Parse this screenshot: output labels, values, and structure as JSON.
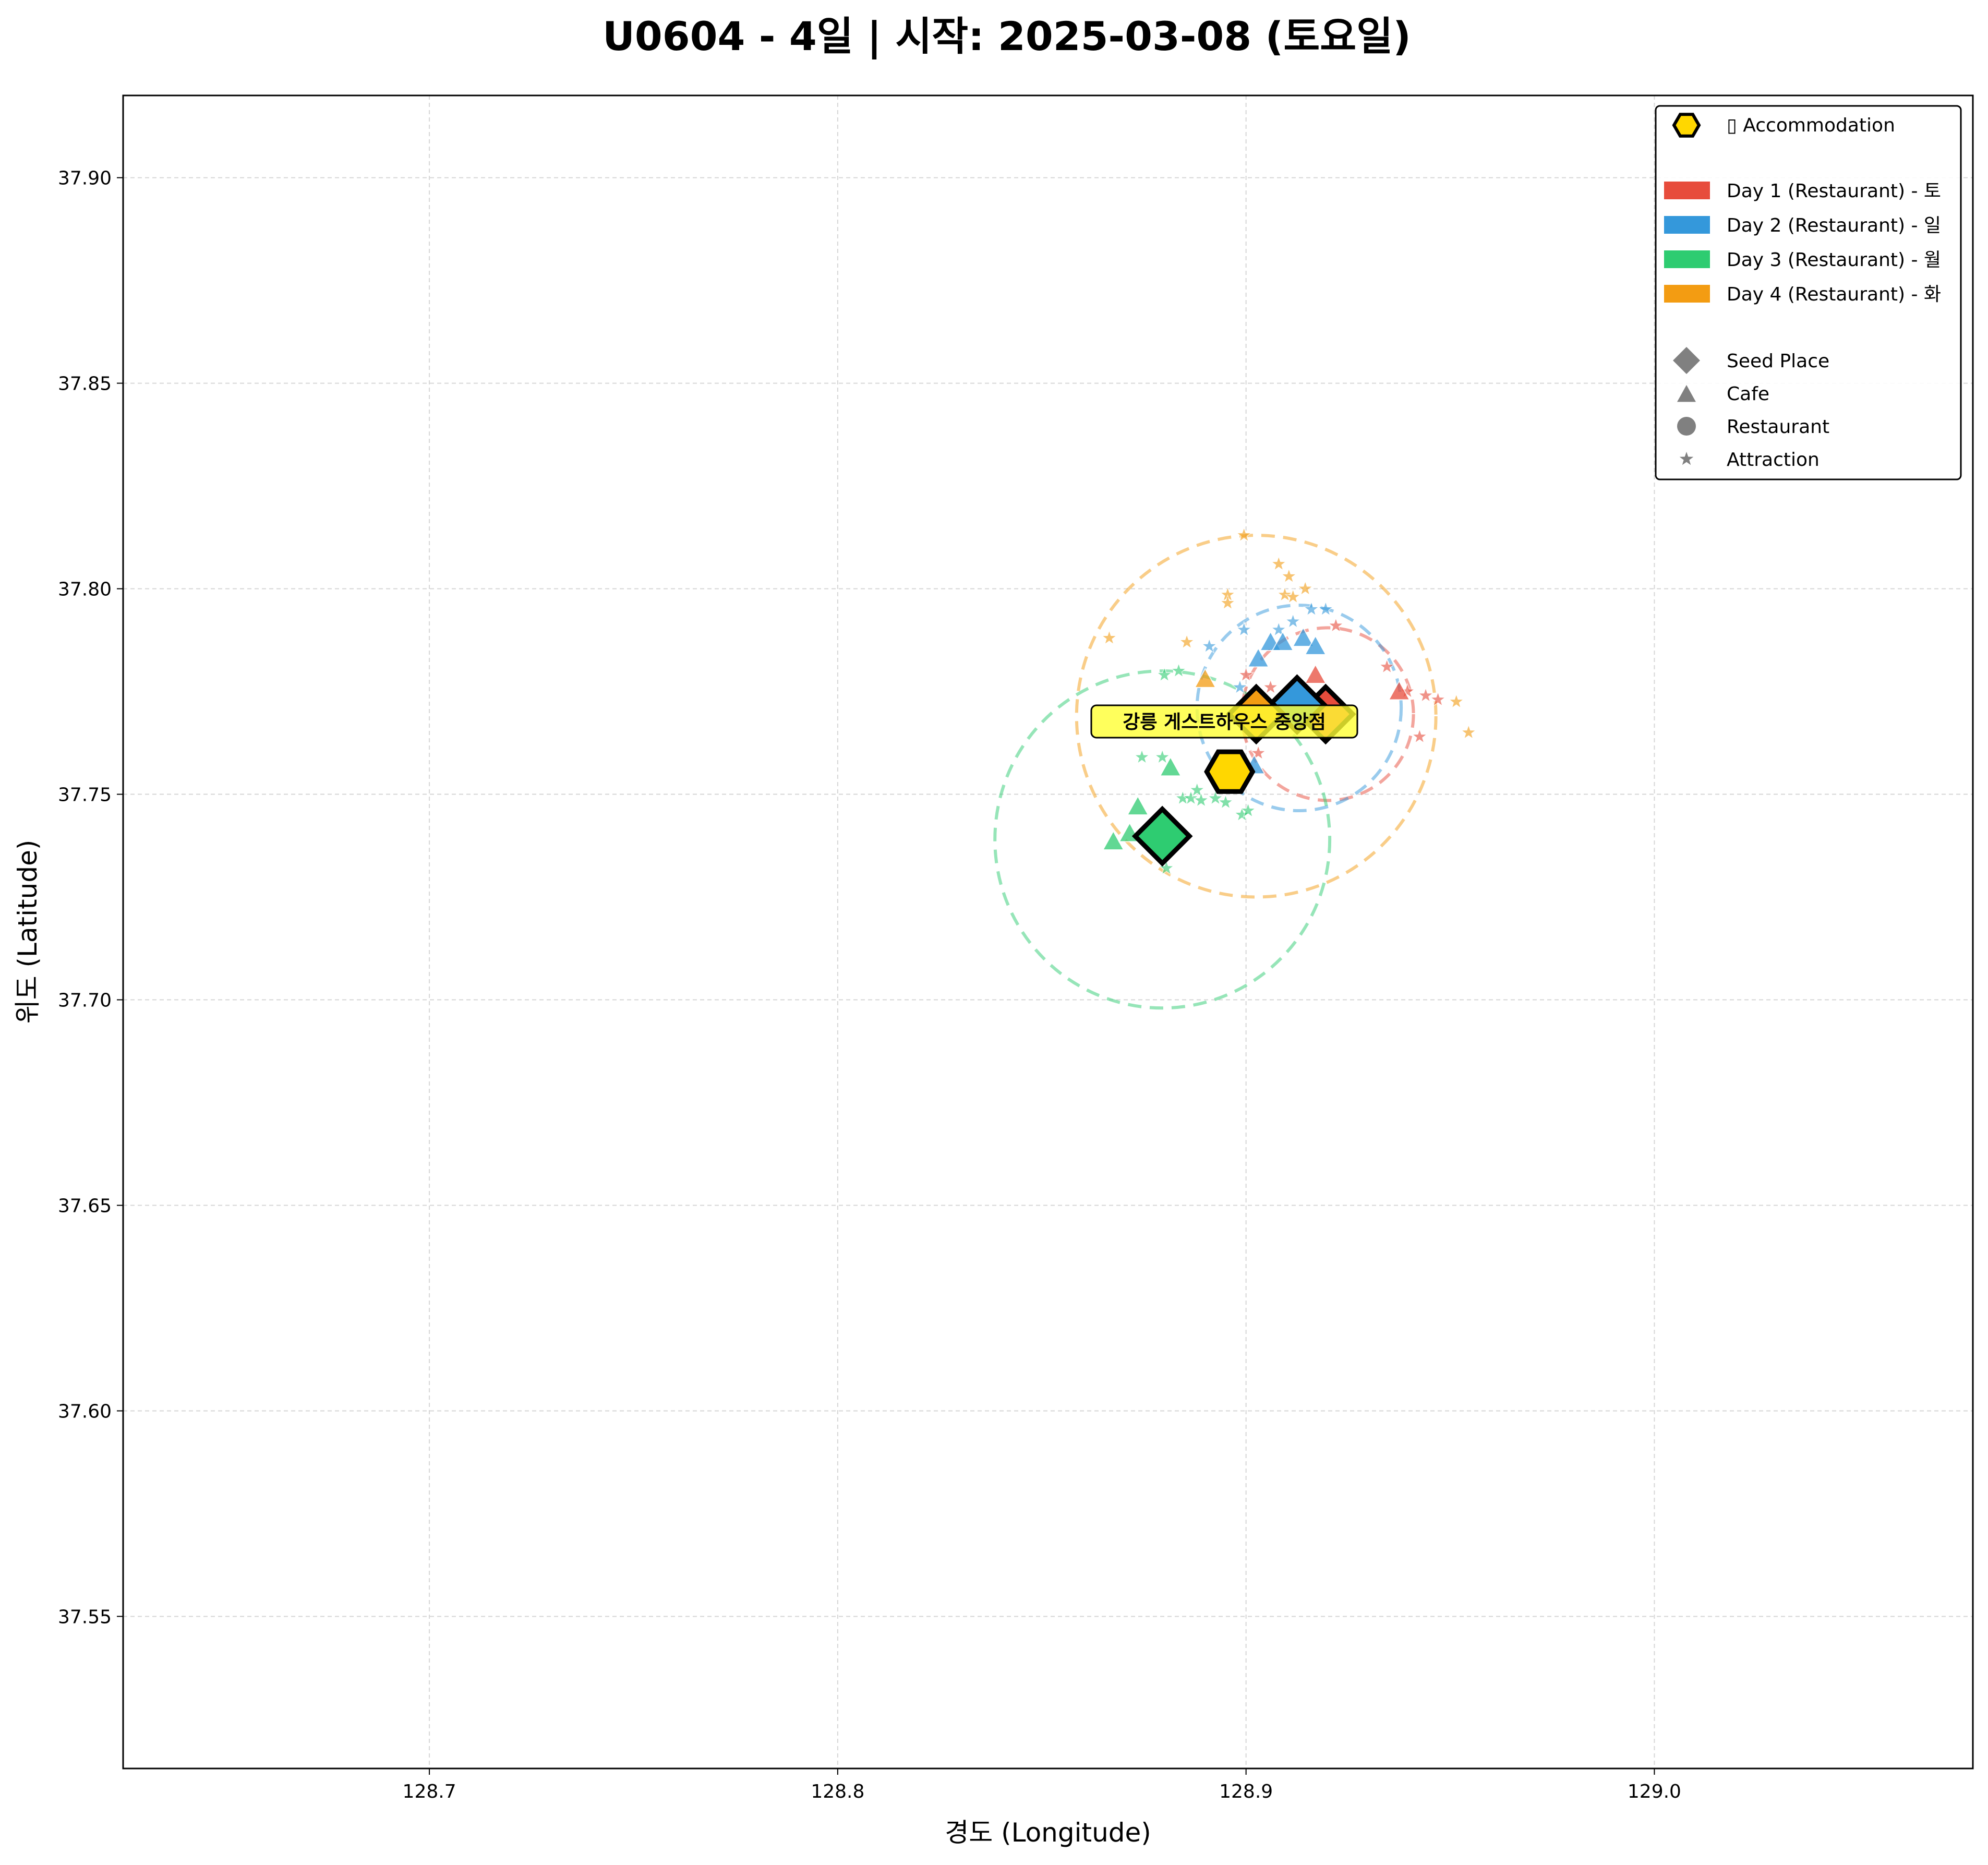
{
  "chart_data": {
    "type": "scatter",
    "title": "U0604 - 4일 | 시작: 2025-03-08 (토요일)",
    "xlabel": "경도 (Longitude)",
    "ylabel": "위도 (Latitude)",
    "xlim": [
      128.625,
      129.078
    ],
    "ylim": [
      37.513,
      37.92
    ],
    "xticks": [
      128.7,
      128.8,
      128.9,
      129.0
    ],
    "xtick_labels": [
      "128.7",
      "128.8",
      "128.9",
      "129.0"
    ],
    "yticks": [
      37.55,
      37.6,
      37.65,
      37.7,
      37.75,
      37.8,
      37.85,
      37.9
    ],
    "ytick_labels": [
      "37.55",
      "37.60",
      "37.65",
      "37.70",
      "37.75",
      "37.80",
      "37.85",
      "37.90"
    ],
    "grid": true,
    "legend_position": "top-right",
    "legend": {
      "accommodation": "▯ Accommodation",
      "days": [
        "Day 1 (Restaurant) - 토",
        "Day 2 (Restaurant) - 일",
        "Day 3 (Restaurant) - 월",
        "Day 4 (Restaurant) - 화"
      ],
      "types": [
        "Seed Place",
        "Cafe",
        "Restaurant",
        "Attraction"
      ]
    },
    "colors": {
      "day1": "#e74c3c",
      "day2": "#3498db",
      "day3": "#2ecc71",
      "day4": "#f39c12",
      "accommodation": "#ffd700",
      "type_marker": "#808080"
    },
    "accommodation": {
      "name": "강릉 게스트하우스 중앙점",
      "lon": 128.896,
      "lat": 37.7555
    },
    "series": [
      {
        "name": "Day 1 (Restaurant) - 토",
        "color": "#e74c3c",
        "radius_circle": {
          "center": [
            128.92,
            37.7695
          ],
          "radius": 0.021
        },
        "seed": [
          128.9195,
          37.7695
        ],
        "cafes": [
          [
            128.917,
            37.779
          ],
          [
            128.9375,
            37.775
          ],
          [
            128.9005,
            37.769
          ]
        ],
        "attractions": [
          [
            128.922,
            37.791
          ],
          [
            128.9345,
            37.781
          ],
          [
            128.9395,
            37.775
          ],
          [
            128.944,
            37.774
          ],
          [
            128.947,
            37.773
          ],
          [
            128.9425,
            37.764
          ],
          [
            128.9,
            37.779
          ],
          [
            128.903,
            37.76
          ],
          [
            128.906,
            37.776
          ]
        ]
      },
      {
        "name": "Day 2 (Restaurant) - 일",
        "color": "#3498db",
        "radius_circle": {
          "center": [
            128.913,
            37.771
          ],
          "radius": 0.025
        },
        "seed": [
          128.9125,
          37.7718
        ],
        "cafes": [
          [
            128.903,
            37.783
          ],
          [
            128.906,
            37.787
          ],
          [
            128.909,
            37.787
          ],
          [
            128.914,
            37.788
          ],
          [
            128.917,
            37.786
          ],
          [
            128.902,
            37.757
          ]
        ],
        "attractions": [
          [
            128.891,
            37.786
          ],
          [
            128.8995,
            37.79
          ],
          [
            128.908,
            37.79
          ],
          [
            128.9115,
            37.792
          ],
          [
            128.916,
            37.795
          ],
          [
            128.9195,
            37.795
          ],
          [
            128.8985,
            37.776
          ]
        ]
      },
      {
        "name": "Day 3 (Restaurant) - 월",
        "color": "#2ecc71",
        "radius_circle": {
          "center": [
            128.8795,
            37.739
          ],
          "radius": 0.041
        },
        "seed": [
          128.8795,
          37.7398
        ],
        "cafes": [
          [
            128.8735,
            37.747
          ],
          [
            128.8815,
            37.7565
          ],
          [
            128.8675,
            37.7385
          ],
          [
            128.8715,
            37.7405
          ]
        ],
        "attractions": [
          [
            128.88,
            37.779
          ],
          [
            128.8835,
            37.78
          ],
          [
            128.8745,
            37.759
          ],
          [
            128.8795,
            37.759
          ],
          [
            128.8845,
            37.749
          ],
          [
            128.8865,
            37.749
          ],
          [
            128.888,
            37.751
          ],
          [
            128.8925,
            37.749
          ],
          [
            128.895,
            37.748
          ],
          [
            128.899,
            37.745
          ],
          [
            128.889,
            37.7485
          ],
          [
            128.9005,
            37.746
          ],
          [
            128.8805,
            37.732
          ]
        ]
      },
      {
        "name": "Day 4 (Restaurant) - 화",
        "color": "#f39c12",
        "radius_circle": {
          "center": [
            128.9025,
            37.769
          ],
          "radius": 0.044
        },
        "seed": [
          128.9025,
          37.7695
        ],
        "cafes": [
          [
            128.89,
            37.778
          ]
        ],
        "attractions": [
          [
            128.8995,
            37.813
          ],
          [
            128.908,
            37.806
          ],
          [
            128.9105,
            37.803
          ],
          [
            128.9145,
            37.8
          ],
          [
            128.9095,
            37.7985
          ],
          [
            128.9115,
            37.798
          ],
          [
            128.8955,
            37.7985
          ],
          [
            128.8955,
            37.7965
          ],
          [
            128.8855,
            37.787
          ],
          [
            128.8665,
            37.788
          ],
          [
            128.9515,
            37.7725
          ],
          [
            128.9545,
            37.765
          ]
        ]
      }
    ]
  }
}
